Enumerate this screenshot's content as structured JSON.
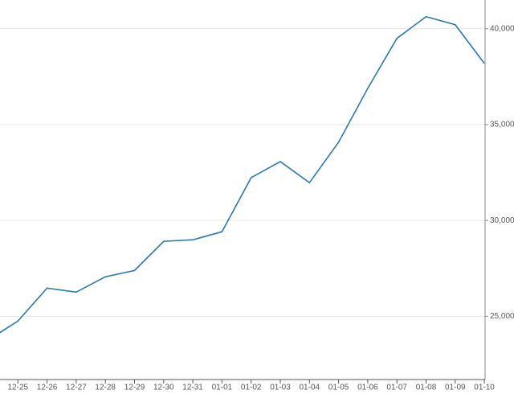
{
  "chart_data": {
    "type": "line",
    "categories": [
      null,
      "12-25",
      "12-26",
      "12-27",
      "12-28",
      "12-29",
      "12-30",
      "12-31",
      "01-01",
      "01-02",
      "01-03",
      "01-04",
      "01-05",
      "01-06",
      "01-07",
      "01-08",
      "01-09",
      "01-10"
    ],
    "series": [
      {
        "color": "#2a78ad",
        "values": [
          23780,
          24750,
          26470,
          26260,
          27060,
          27390,
          28910,
          28990,
          29410,
          32230,
          33070,
          31970,
          34080,
          36890,
          39500,
          40630,
          40210,
          38190
        ]
      }
    ],
    "ylim": [
      21700,
      41500
    ],
    "yticks": [
      {
        "value": 25000,
        "label": "25,000."
      },
      {
        "value": 30000,
        "label": "30,000."
      },
      {
        "value": 35000,
        "label": "35,000."
      },
      {
        "value": 40000,
        "label": "40,000."
      }
    ],
    "grid": true
  }
}
